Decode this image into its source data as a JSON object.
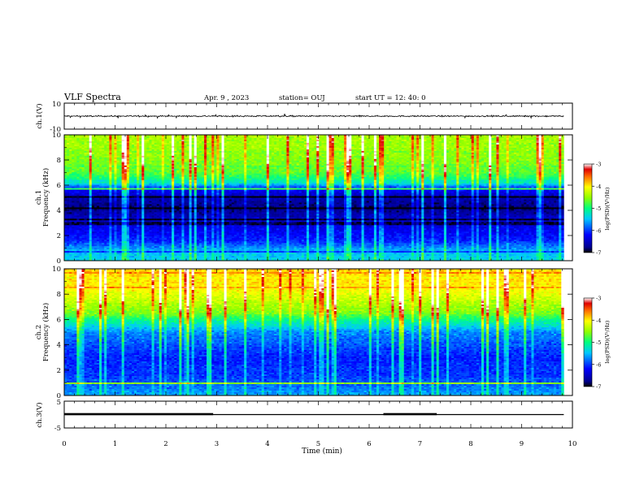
{
  "header": {
    "title": "VLF Spectra",
    "date": "Apr. 9 , 2023",
    "station": "station= OUJ",
    "start": "start UT = 12: 40: 0"
  },
  "chart_data": [
    {
      "type": "line",
      "name": "ch1-waveform",
      "ylabel": "ch.1(V)",
      "ylim": [
        -10,
        10
      ],
      "ytick_labels": [
        "10",
        "-10"
      ],
      "xlim": [
        0,
        10
      ],
      "trace_end_min": 9.83,
      "level": 0,
      "noise_amplitude": 0.9
    },
    {
      "type": "heatmap",
      "name": "ch1-spectrogram",
      "ylabel": "ch.1\nFrequency (kHz)",
      "ylabel_line1": "ch.1",
      "ylabel_line2": "Frequency (kHz)",
      "xlim": [
        0,
        10
      ],
      "ylim": [
        0,
        10
      ],
      "yticks": [
        0,
        2,
        4,
        6,
        8,
        10
      ],
      "data_end_min": 9.83,
      "log_psd_range": [
        -7,
        -3
      ],
      "colorbar": {
        "label": "log(PSD)(V²/Hz)",
        "ticks": [
          -3,
          -4,
          -5,
          -6,
          -7
        ],
        "tick_labels": [
          "-3",
          "-4",
          "-5",
          "-6",
          "-7"
        ]
      },
      "band_profile": [
        {
          "f": 0.0,
          "level": -5.4
        },
        {
          "f": 0.7,
          "level": -5.5
        },
        {
          "f": 1.6,
          "level": -6.1
        },
        {
          "f": 3.0,
          "level": -6.4
        },
        {
          "f": 4.2,
          "level": -6.8
        },
        {
          "f": 5.0,
          "level": -6.6
        },
        {
          "f": 5.7,
          "level": -6.2
        },
        {
          "f": 6.2,
          "level": -5.2
        },
        {
          "f": 7.0,
          "level": -4.7
        },
        {
          "f": 8.5,
          "level": -4.5
        },
        {
          "f": 10.0,
          "level": -4.4
        }
      ]
    },
    {
      "type": "heatmap",
      "name": "ch2-spectrogram",
      "ylabel_line1": "ch.2",
      "ylabel_line2": "Frequency (kHz)",
      "xlim": [
        0,
        10
      ],
      "ylim": [
        0,
        10
      ],
      "yticks": [
        0,
        2,
        4,
        6,
        8,
        10
      ],
      "data_end_min": 9.83,
      "log_psd_range": [
        -7,
        -3
      ],
      "colorbar": {
        "label": "log(PSD)(V²/Hz)",
        "ticks": [
          -3,
          -4,
          -5,
          -6,
          -7
        ],
        "tick_labels": [
          "-3",
          "-4",
          "-5",
          "-6",
          "-7"
        ]
      },
      "band_profile": [
        {
          "f": 0.0,
          "level": -5.6
        },
        {
          "f": 1.5,
          "level": -6.0
        },
        {
          "f": 3.0,
          "level": -6.1
        },
        {
          "f": 4.0,
          "level": -5.9
        },
        {
          "f": 5.0,
          "level": -5.7
        },
        {
          "f": 6.0,
          "level": -5.0
        },
        {
          "f": 6.5,
          "level": -4.6
        },
        {
          "f": 7.5,
          "level": -4.3
        },
        {
          "f": 8.5,
          "level": -4.0
        },
        {
          "f": 10.0,
          "level": -3.9
        }
      ]
    },
    {
      "type": "line",
      "name": "ch3-signal",
      "ylabel": "ch.3(V)",
      "ylim": [
        -5,
        5
      ],
      "ytick_labels": [
        "5",
        "-5"
      ],
      "xlim": [
        0,
        10
      ],
      "xlabel": "Time (min)",
      "xticks": [
        0,
        1,
        2,
        3,
        4,
        5,
        6,
        7,
        8,
        9,
        10
      ],
      "xtick_labels": [
        "0",
        "1",
        "2",
        "3",
        "4",
        "5",
        "6",
        "7",
        "8",
        "9",
        "10"
      ],
      "trace_end_min": 9.83,
      "baseline": 0,
      "high_segments": [
        {
          "start": 0.0,
          "end": 2.93,
          "value": 0.25
        },
        {
          "start": 6.28,
          "end": 7.33,
          "value": 0.25
        }
      ]
    }
  ]
}
